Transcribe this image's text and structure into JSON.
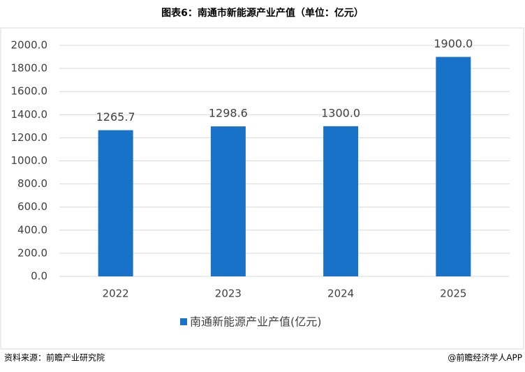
{
  "chart_data": {
    "type": "bar",
    "title": "图表6：南通市新能源产业产值（单位：亿元）",
    "categories": [
      "2022",
      "2023",
      "2024",
      "2025"
    ],
    "series": [
      {
        "name": "南通新能源产业产值(亿元)",
        "color": "#1872c8",
        "values": [
          1265.7,
          1298.6,
          1300.0,
          1900.0
        ],
        "value_labels": [
          "1265.7",
          "1298.6",
          "1300.0",
          "1900.0"
        ]
      }
    ],
    "ylim": [
      0,
      2000
    ],
    "yticks": [
      {
        "value": 0,
        "label": "0.0"
      },
      {
        "value": 200,
        "label": "200.0"
      },
      {
        "value": 400,
        "label": "400.0"
      },
      {
        "value": 600,
        "label": "600.0"
      },
      {
        "value": 800,
        "label": "800.0"
      },
      {
        "value": 1000,
        "label": "1000.0"
      },
      {
        "value": 1200,
        "label": "1200.0"
      },
      {
        "value": 1400,
        "label": "1400.0"
      },
      {
        "value": 1600,
        "label": "1600.0"
      },
      {
        "value": 1800,
        "label": "1800.0"
      },
      {
        "value": 2000,
        "label": "2000.0"
      }
    ],
    "grid": true,
    "legend": "bottom",
    "source": "资料来源：前瞻产业研究院",
    "credit": "@前瞻经济学人APP"
  }
}
